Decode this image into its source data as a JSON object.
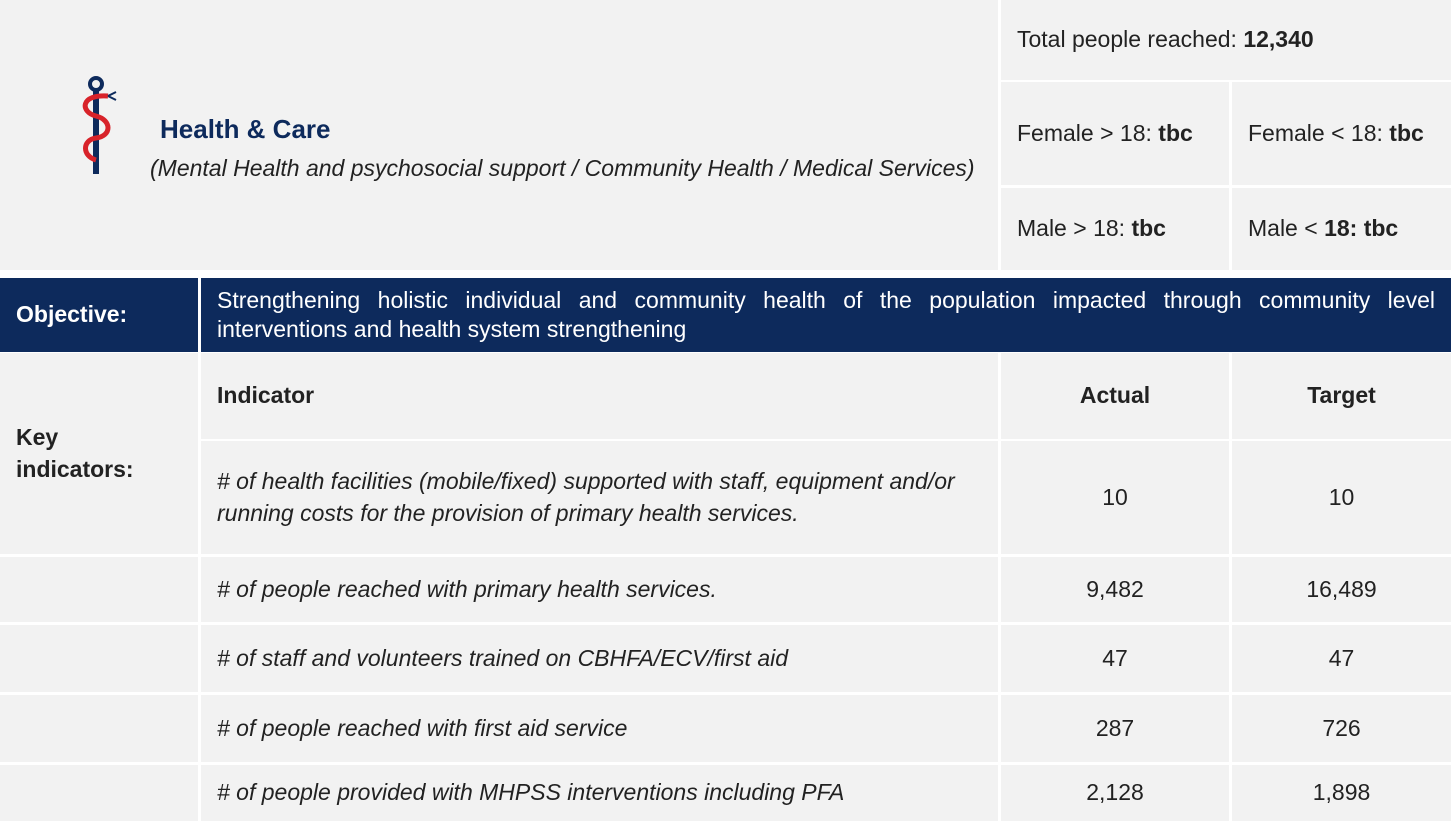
{
  "header": {
    "title": "Health & Care",
    "subtitle": "(Mental Health and psychosocial support / Community Health / Medical Services)"
  },
  "reach": {
    "total": {
      "label": "Total people reached:",
      "value": "12,340"
    },
    "breakdown": [
      [
        {
          "label": "Female > 18:",
          "value": "tbc"
        },
        {
          "label": "Female < 18:",
          "value": "tbc"
        }
      ],
      [
        {
          "label": "Male > 18:",
          "value": "tbc"
        },
        {
          "label": "Male <",
          "value": "18: tbc"
        }
      ]
    ]
  },
  "objective": {
    "label": "Objective:",
    "text": "Strengthening holistic individual and community health of the population impacted through community level interventions and health system strengthening"
  },
  "table": {
    "label": "Key indicators:",
    "columns": [
      "Indicator",
      "Actual",
      "Target"
    ],
    "rows": [
      [
        "# of health facilities (mobile/fixed) supported with staff, equipment and/or running costs for the provision of primary health services.",
        "10",
        "10"
      ],
      [
        "# of people reached with primary health services.",
        "9,482",
        "16,489"
      ],
      [
        "# of staff and volunteers trained on CBHFA/ECV/first aid",
        "47",
        "47"
      ],
      [
        "# of people reached with first aid service",
        "287",
        "726"
      ],
      [
        "# of people provided with MHPSS interventions including PFA",
        "2,128",
        "1,898"
      ]
    ]
  }
}
